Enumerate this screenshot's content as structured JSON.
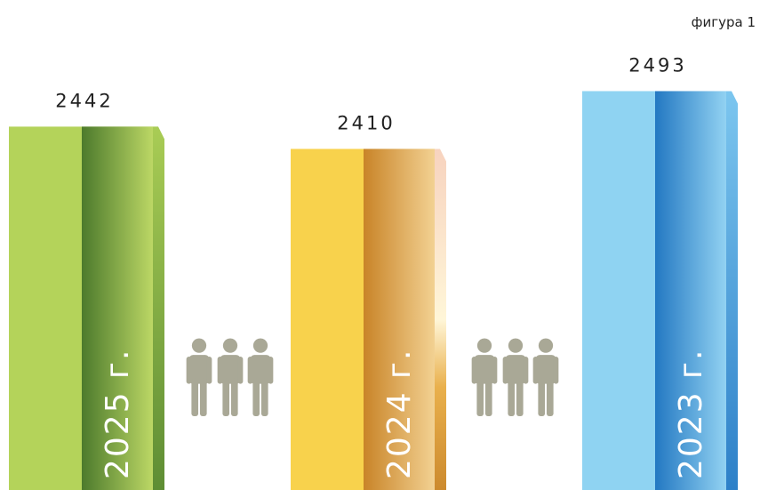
{
  "chart_data": {
    "type": "bar",
    "title": "фигура 1",
    "categories": [
      "2025 г.",
      "2024 г.",
      "2023 г."
    ],
    "values": [
      2442,
      2410,
      2493
    ],
    "colors": [
      "#b4d35a",
      "#f8d24c",
      "#8fd3f2"
    ],
    "ylim": [
      1920,
      2500
    ]
  }
}
